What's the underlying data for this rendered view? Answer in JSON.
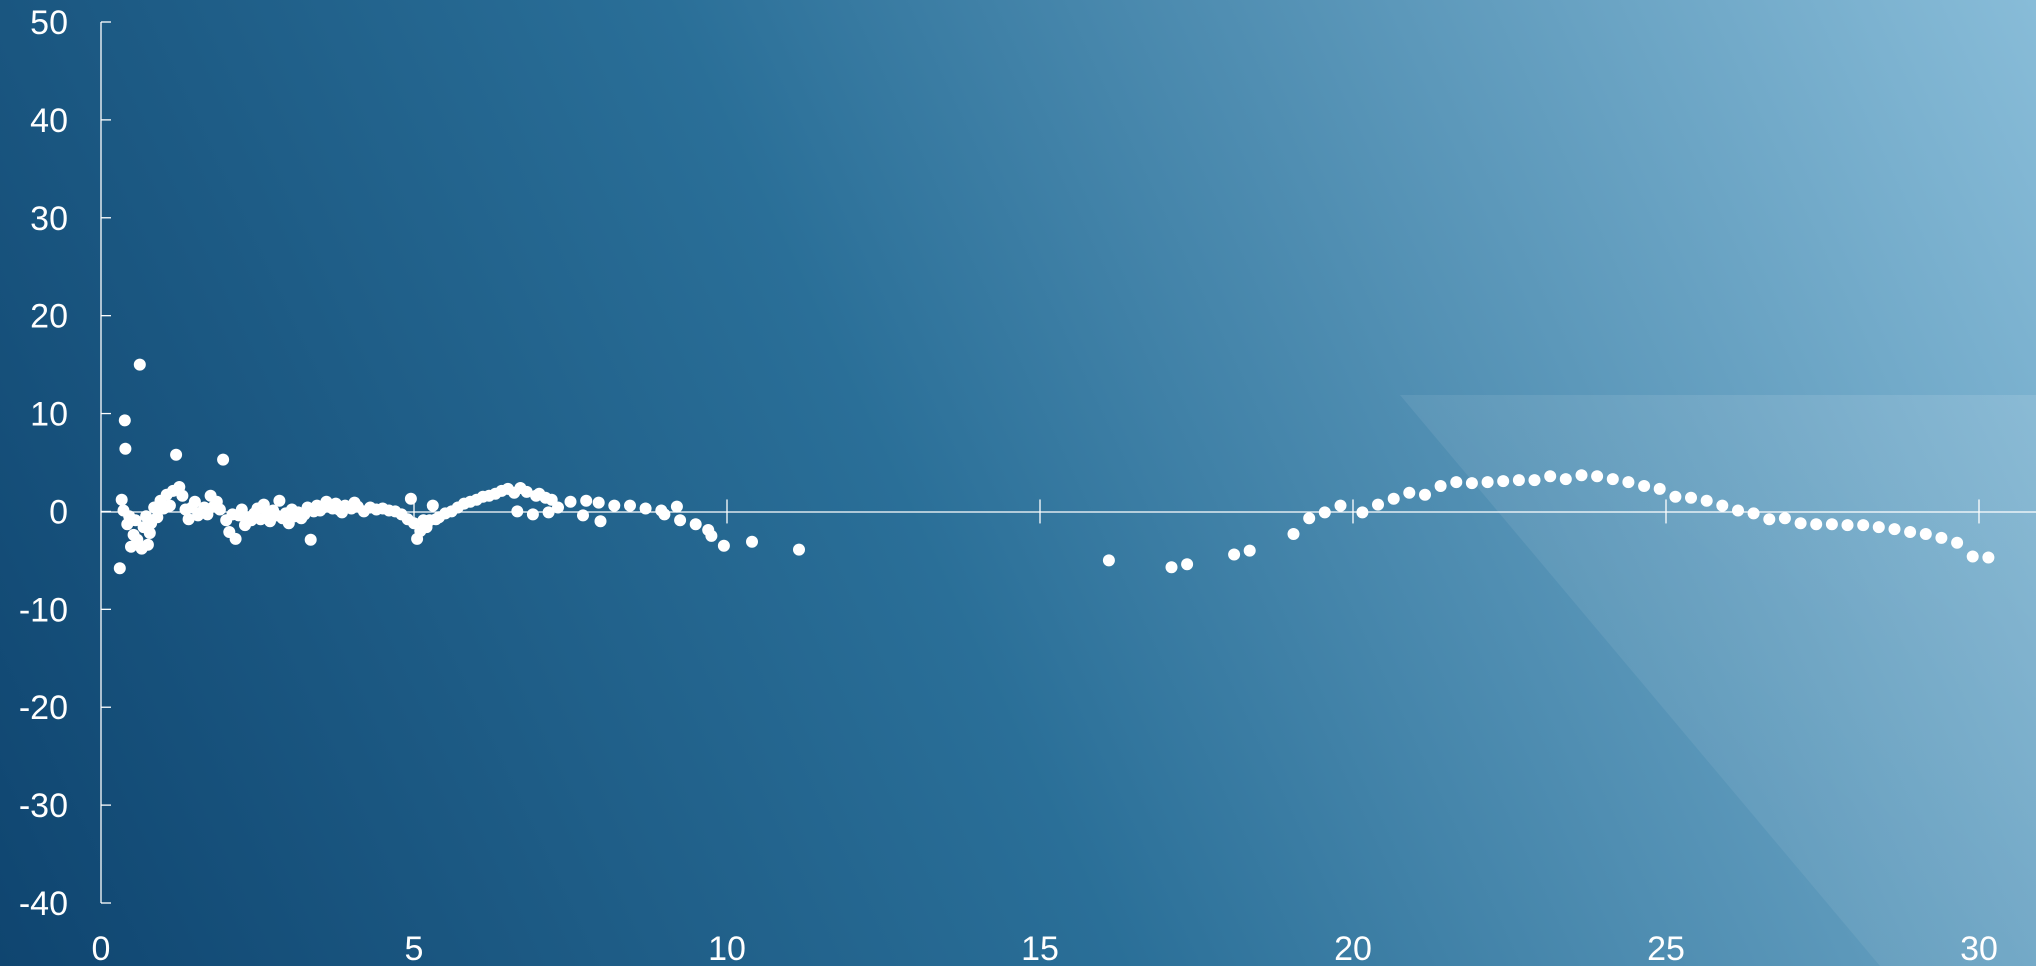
{
  "chart_data": {
    "type": "scatter",
    "title": "",
    "xlabel": "",
    "ylabel": "",
    "xlim": [
      0,
      30
    ],
    "ylim": [
      -40,
      50
    ],
    "x_ticks": [
      0,
      5,
      10,
      15,
      20,
      25,
      30
    ],
    "y_ticks": [
      50,
      40,
      30,
      20,
      10,
      0,
      -10,
      -20,
      -30,
      -40
    ],
    "x_tick_labels": [
      "0",
      "5",
      "10",
      "15",
      "20",
      "25",
      "30"
    ],
    "y_tick_labels": [
      "50",
      "40",
      "30",
      "20",
      "10",
      "0",
      "-10",
      "-20",
      "-30",
      "-40"
    ],
    "grid": false,
    "legend": "none",
    "colors": {
      "background_dark": "#0f4570",
      "background_mid": "#2a6f98",
      "background_light": "#86bad6",
      "points": "#ffffff",
      "axes": "#ffffff"
    },
    "series": [
      {
        "points": [
          [
            0.3,
            -5.8
          ],
          [
            0.33,
            1.2
          ],
          [
            0.36,
            0.1
          ],
          [
            0.38,
            9.3
          ],
          [
            0.39,
            6.4
          ],
          [
            0.42,
            -1.3
          ],
          [
            0.45,
            -0.5
          ],
          [
            0.48,
            -3.6
          ],
          [
            0.52,
            -2.4
          ],
          [
            0.55,
            -0.9
          ],
          [
            0.58,
            -2.9
          ],
          [
            0.62,
            15.0
          ],
          [
            0.65,
            -3.8
          ],
          [
            0.68,
            -1.6
          ],
          [
            0.72,
            -0.5
          ],
          [
            0.75,
            -3.4
          ],
          [
            0.78,
            -2.2
          ],
          [
            0.8,
            -1.2
          ],
          [
            0.85,
            0.4
          ],
          [
            0.9,
            -0.6
          ],
          [
            0.95,
            1.1
          ],
          [
            1.0,
            0.3
          ],
          [
            1.05,
            1.7
          ],
          [
            1.1,
            0.6
          ],
          [
            1.15,
            2.1
          ],
          [
            1.2,
            5.8
          ],
          [
            1.25,
            2.5
          ],
          [
            1.3,
            1.6
          ],
          [
            1.35,
            0.2
          ],
          [
            1.4,
            -0.8
          ],
          [
            1.45,
            0.4
          ],
          [
            1.5,
            1.0
          ],
          [
            1.55,
            -0.4
          ],
          [
            1.6,
            -0.1
          ],
          [
            1.65,
            0.4
          ],
          [
            1.7,
            -0.3
          ],
          [
            1.75,
            1.6
          ],
          [
            1.8,
            0.5
          ],
          [
            1.85,
            1.0
          ],
          [
            1.9,
            0.2
          ],
          [
            1.95,
            5.3
          ],
          [
            2.0,
            -0.9
          ],
          [
            2.05,
            -2.1
          ],
          [
            2.1,
            -0.3
          ],
          [
            2.15,
            -2.8
          ],
          [
            2.2,
            -0.4
          ],
          [
            2.25,
            0.2
          ],
          [
            2.3,
            -1.4
          ],
          [
            2.35,
            -0.6
          ],
          [
            2.4,
            -0.9
          ],
          [
            2.45,
            -0.2
          ],
          [
            2.5,
            0.3
          ],
          [
            2.55,
            -0.8
          ],
          [
            2.6,
            0.7
          ],
          [
            2.65,
            -0.3
          ],
          [
            2.7,
            -1.0
          ],
          [
            2.75,
            0.1
          ],
          [
            2.8,
            -0.4
          ],
          [
            2.85,
            1.1
          ],
          [
            2.9,
            -0.7
          ],
          [
            2.95,
            -0.2
          ],
          [
            3.0,
            -1.2
          ],
          [
            3.05,
            0.2
          ],
          [
            3.1,
            -0.5
          ],
          [
            3.15,
            -0.1
          ],
          [
            3.2,
            -0.7
          ],
          [
            3.25,
            -0.3
          ],
          [
            3.3,
            0.4
          ],
          [
            3.35,
            -2.9
          ],
          [
            3.4,
            0.0
          ],
          [
            3.45,
            0.6
          ],
          [
            3.5,
            0.1
          ],
          [
            3.55,
            0.4
          ],
          [
            3.6,
            1.0
          ],
          [
            3.7,
            0.3
          ],
          [
            3.75,
            0.8
          ],
          [
            3.8,
            0.2
          ],
          [
            3.85,
            -0.1
          ],
          [
            3.9,
            0.6
          ],
          [
            4.0,
            0.3
          ],
          [
            4.05,
            0.9
          ],
          [
            4.1,
            0.5
          ],
          [
            4.2,
            0.0
          ],
          [
            4.3,
            0.4
          ],
          [
            4.4,
            0.2
          ],
          [
            4.5,
            0.3
          ],
          [
            4.6,
            0.1
          ],
          [
            4.7,
            0.0
          ],
          [
            4.8,
            -0.3
          ],
          [
            4.9,
            -0.8
          ],
          [
            4.95,
            1.3
          ],
          [
            5.0,
            -1.2
          ],
          [
            5.05,
            -2.8
          ],
          [
            5.1,
            -2.0
          ],
          [
            5.15,
            -0.9
          ],
          [
            5.2,
            -1.6
          ],
          [
            5.25,
            -0.9
          ],
          [
            5.3,
            0.6
          ],
          [
            5.35,
            -0.8
          ],
          [
            5.4,
            -0.6
          ],
          [
            5.5,
            -0.2
          ],
          [
            5.6,
            0.0
          ],
          [
            5.7,
            0.4
          ],
          [
            5.8,
            0.8
          ],
          [
            5.9,
            1.0
          ],
          [
            6.0,
            1.2
          ],
          [
            6.1,
            1.5
          ],
          [
            6.2,
            1.6
          ],
          [
            6.3,
            1.8
          ],
          [
            6.4,
            2.1
          ],
          [
            6.5,
            2.3
          ],
          [
            6.6,
            1.9
          ],
          [
            6.65,
            0.0
          ],
          [
            6.7,
            2.4
          ],
          [
            6.8,
            2.0
          ],
          [
            6.9,
            -0.3
          ],
          [
            6.95,
            1.6
          ],
          [
            7.0,
            1.8
          ],
          [
            7.1,
            1.4
          ],
          [
            7.15,
            -0.1
          ],
          [
            7.2,
            1.2
          ],
          [
            7.3,
            0.4
          ],
          [
            7.5,
            1.0
          ],
          [
            7.7,
            -0.4
          ],
          [
            7.75,
            1.1
          ],
          [
            7.95,
            0.9
          ],
          [
            7.98,
            -1.0
          ],
          [
            8.2,
            0.6
          ],
          [
            8.45,
            0.6
          ],
          [
            8.7,
            0.3
          ],
          [
            8.95,
            0.1
          ],
          [
            9.0,
            -0.3
          ],
          [
            9.2,
            0.5
          ],
          [
            9.25,
            -0.9
          ],
          [
            9.5,
            -1.3
          ],
          [
            9.7,
            -1.9
          ],
          [
            9.75,
            -2.5
          ],
          [
            9.95,
            -3.5
          ],
          [
            10.4,
            -3.1
          ],
          [
            11.15,
            -3.9
          ],
          [
            16.1,
            -5.0
          ],
          [
            17.1,
            -5.7
          ],
          [
            17.35,
            -5.4
          ],
          [
            18.1,
            -4.4
          ],
          [
            18.35,
            -4.0
          ],
          [
            19.05,
            -2.3
          ],
          [
            19.3,
            -0.7
          ],
          [
            19.55,
            -0.1
          ],
          [
            19.8,
            0.6
          ],
          [
            20.15,
            -0.1
          ],
          [
            20.4,
            0.7
          ],
          [
            20.65,
            1.3
          ],
          [
            20.9,
            1.9
          ],
          [
            21.15,
            1.7
          ],
          [
            21.4,
            2.6
          ],
          [
            21.65,
            3.0
          ],
          [
            21.9,
            2.9
          ],
          [
            22.15,
            3.0
          ],
          [
            22.4,
            3.1
          ],
          [
            22.65,
            3.2
          ],
          [
            22.9,
            3.2
          ],
          [
            23.15,
            3.6
          ],
          [
            23.4,
            3.3
          ],
          [
            23.65,
            3.7
          ],
          [
            23.9,
            3.6
          ],
          [
            24.15,
            3.3
          ],
          [
            24.4,
            3.0
          ],
          [
            24.65,
            2.6
          ],
          [
            24.9,
            2.3
          ],
          [
            25.15,
            1.5
          ],
          [
            25.4,
            1.4
          ],
          [
            25.65,
            1.1
          ],
          [
            25.9,
            0.6
          ],
          [
            26.15,
            0.1
          ],
          [
            26.4,
            -0.2
          ],
          [
            26.65,
            -0.8
          ],
          [
            26.9,
            -0.7
          ],
          [
            27.15,
            -1.2
          ],
          [
            27.4,
            -1.3
          ],
          [
            27.65,
            -1.3
          ],
          [
            27.9,
            -1.4
          ],
          [
            28.15,
            -1.4
          ],
          [
            28.4,
            -1.6
          ],
          [
            28.65,
            -1.8
          ],
          [
            28.9,
            -2.1
          ],
          [
            29.15,
            -2.3
          ],
          [
            29.4,
            -2.7
          ],
          [
            29.65,
            -3.2
          ],
          [
            29.9,
            -4.6
          ],
          [
            30.15,
            -4.7
          ]
        ]
      }
    ]
  }
}
